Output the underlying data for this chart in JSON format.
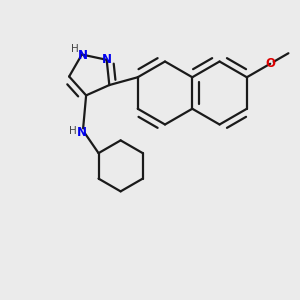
{
  "bg_color": "#ebebeb",
  "bond_color": "#1a1a1a",
  "N_color": "#0000ee",
  "O_color": "#dd0000",
  "H_color": "#444444",
  "line_width": 1.6,
  "figsize": [
    3.0,
    3.0
  ],
  "dpi": 100,
  "xlim": [
    0.0,
    1.0
  ],
  "ylim": [
    0.0,
    1.0
  ]
}
